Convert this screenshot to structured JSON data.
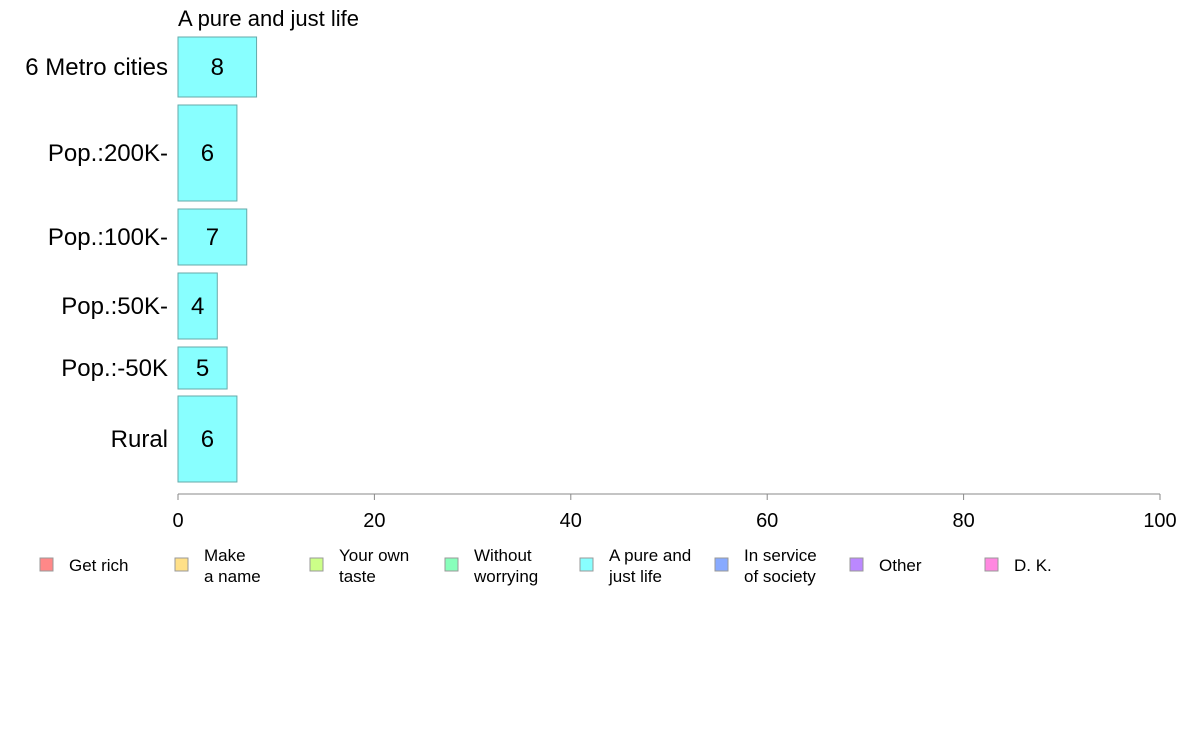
{
  "chart_data": {
    "type": "bar",
    "orientation": "horizontal",
    "title": "A pure and just life",
    "categories": [
      "6 Metro cities",
      "Pop.:200K-",
      "Pop.:100K-",
      "Pop.:50K-",
      "Pop.:-50K",
      "Rural"
    ],
    "values": [
      8,
      6,
      7,
      4,
      5,
      6
    ],
    "data_labels": [
      "8",
      "6",
      "7",
      "4",
      "5",
      "6"
    ],
    "bar_color": "#88ffff",
    "xlim": [
      0,
      100
    ],
    "xticks": [
      0,
      20,
      40,
      60,
      80,
      100
    ],
    "xtick_labels": [
      "0",
      "20",
      "40",
      "60",
      "80",
      "100"
    ],
    "xlabel": "",
    "ylabel": "",
    "grid": false,
    "legend_placement": "bottom",
    "legend": [
      {
        "lines": [
          "Get rich"
        ],
        "color": "#ff8888"
      },
      {
        "lines": [
          "Make",
          "a name"
        ],
        "color": "#ffe088"
      },
      {
        "lines": [
          "Your own",
          "taste"
        ],
        "color": "#ccff88"
      },
      {
        "lines": [
          "Without",
          "worrying"
        ],
        "color": "#88ffbb"
      },
      {
        "lines": [
          "A pure and",
          "just life"
        ],
        "color": "#88ffff"
      },
      {
        "lines": [
          "In service",
          "of society"
        ],
        "color": "#88aaff"
      },
      {
        "lines": [
          "Other"
        ],
        "color": "#bb88ff"
      },
      {
        "lines": [
          "D. K."
        ],
        "color": "#ff88e0"
      }
    ]
  }
}
